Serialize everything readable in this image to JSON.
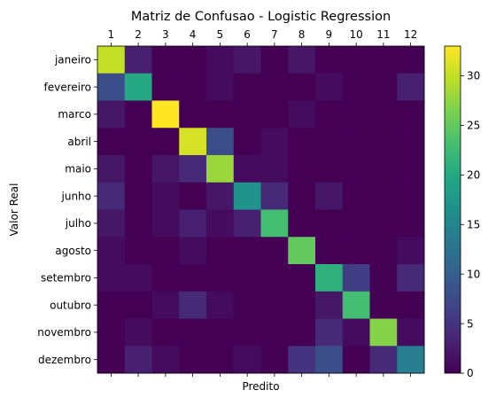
{
  "chart_data": {
    "type": "heatmap",
    "title": "Matriz de Confusao - Logistic Regression",
    "xlabel": "Predito",
    "ylabel": "Valor Real",
    "x_categories": [
      "1",
      "2",
      "3",
      "4",
      "5",
      "6",
      "7",
      "8",
      "9",
      "10",
      "11",
      "12"
    ],
    "y_categories": [
      "janeiro",
      "fevereiro",
      "marco",
      "abril",
      "maio",
      "junho",
      "julho",
      "agosto",
      "setembro",
      "outubro",
      "novembro",
      "dezembro"
    ],
    "matrix": [
      [
        30,
        3,
        0,
        0,
        1,
        2,
        0,
        2,
        0,
        0,
        0,
        0
      ],
      [
        8,
        20,
        0,
        0,
        1,
        0,
        0,
        0,
        1,
        0,
        0,
        3
      ],
      [
        2,
        0,
        33,
        0,
        0,
        0,
        0,
        1,
        0,
        0,
        0,
        0
      ],
      [
        0,
        0,
        0,
        31,
        8,
        0,
        1,
        0,
        0,
        0,
        0,
        0
      ],
      [
        2,
        0,
        2,
        4,
        28,
        1,
        1,
        0,
        0,
        0,
        0,
        0
      ],
      [
        4,
        0,
        1,
        0,
        2,
        17,
        4,
        0,
        2,
        0,
        0,
        0
      ],
      [
        2,
        0,
        1,
        3,
        1,
        3,
        23,
        0,
        0,
        0,
        0,
        0
      ],
      [
        1,
        0,
        0,
        1,
        0,
        0,
        0,
        25,
        0,
        0,
        0,
        1
      ],
      [
        1,
        1,
        0,
        0,
        0,
        0,
        0,
        0,
        21,
        6,
        0,
        4
      ],
      [
        0,
        0,
        1,
        4,
        1,
        0,
        0,
        0,
        2,
        23,
        0,
        0
      ],
      [
        0,
        1,
        0,
        0,
        0,
        0,
        0,
        0,
        4,
        1,
        27,
        1
      ],
      [
        0,
        3,
        1,
        0,
        0,
        1,
        0,
        5,
        8,
        0,
        4,
        14
      ]
    ],
    "colorbar": {
      "min": 0,
      "max": 33,
      "ticks": [
        0,
        5,
        10,
        15,
        20,
        25,
        30
      ]
    },
    "colormap": "viridis"
  }
}
